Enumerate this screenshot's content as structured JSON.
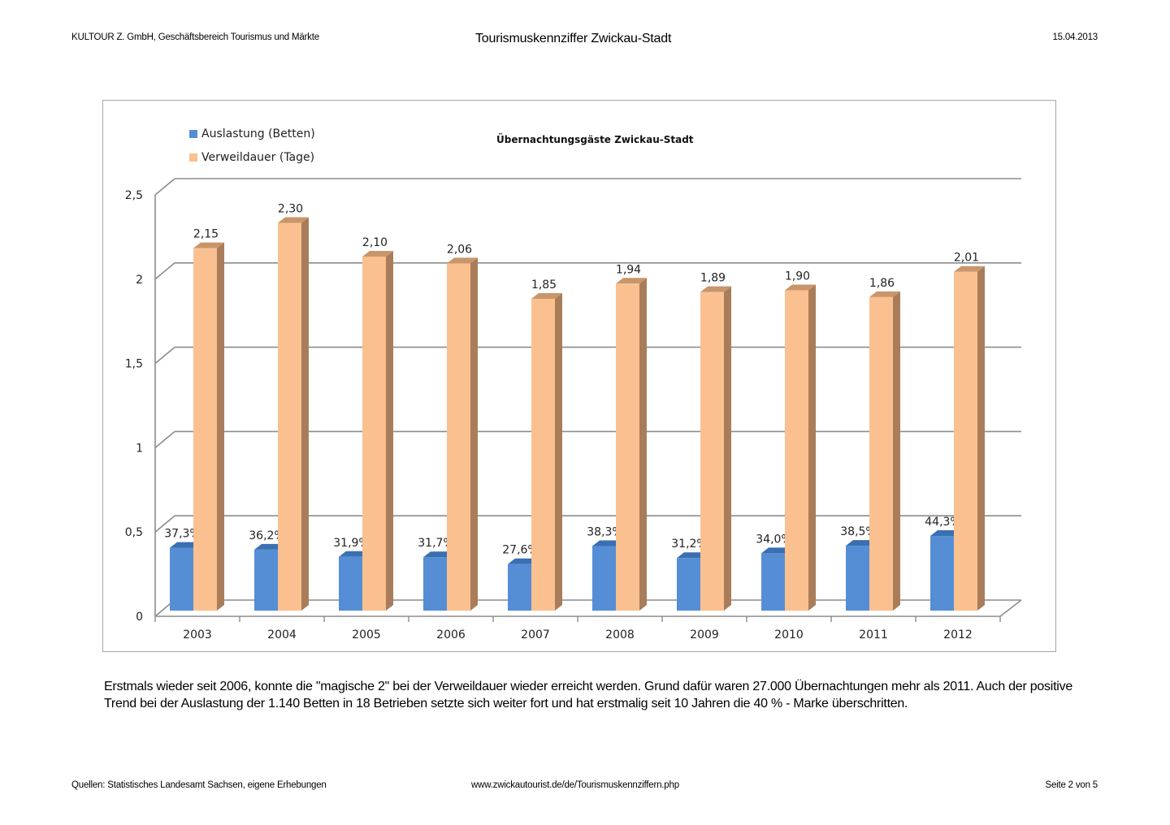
{
  "header": {
    "organization": "KULTOUR Z. GmbH, Geschäftsbereich Tourismus und Märkte",
    "title": "Tourismuskennziffer Zwickau-Stadt",
    "date": "15.04.2013"
  },
  "chart_data": {
    "type": "bar",
    "title": "Übernachtungsgäste Zwickau-Stadt",
    "xlabel": "",
    "ylabel": "",
    "ylim": [
      0,
      2.5
    ],
    "yticks": [
      0,
      0.5,
      1,
      1.5,
      2,
      2.5
    ],
    "ytick_labels": [
      "0",
      "0,5",
      "1",
      "1,5",
      "2",
      "2,5"
    ],
    "grid": true,
    "legend_position": "top-left",
    "categories": [
      "2003",
      "2004",
      "2005",
      "2006",
      "2007",
      "2008",
      "2009",
      "2010",
      "2011",
      "2012"
    ],
    "series": [
      {
        "name": "Auslastung (Betten)",
        "color": "#558ed5",
        "values": [
          0.373,
          0.362,
          0.319,
          0.317,
          0.276,
          0.383,
          0.312,
          0.34,
          0.385,
          0.443
        ],
        "labels": [
          "37,3%",
          "36,2%",
          "31,9%",
          "31,7%",
          "27,6%",
          "38,3%",
          "31,2%",
          "34,0%",
          "38,5%",
          "44,3%"
        ]
      },
      {
        "name": "Verweildauer (Tage)",
        "color": "#fac090",
        "values": [
          2.15,
          2.3,
          2.1,
          2.06,
          1.85,
          1.94,
          1.89,
          1.9,
          1.86,
          2.01
        ],
        "labels": [
          "2,15",
          "2,30",
          "2,10",
          "2,06",
          "1,85",
          "1,94",
          "1,89",
          "1,90",
          "1,86",
          "2,01"
        ]
      }
    ]
  },
  "body": {
    "paragraph": "Erstmals wieder seit 2006, konnte die \"magische 2\" bei der Verweildauer wieder erreicht werden. Grund dafür waren 27.000 Übernachtungen mehr als 2011. Auch der positive Trend bei der Auslastung der 1.140 Betten in 18 Betrieben setzte sich weiter fort und hat erstmalig seit 10 Jahren die 40 % - Marke überschritten."
  },
  "footer": {
    "sources": "Quellen: Statistisches Landesamt Sachsen, eigene Erhebungen",
    "url": "www.zwickautourist.de/de/Tourismuskennziffern.php",
    "page": "Seite 2 von 5"
  }
}
